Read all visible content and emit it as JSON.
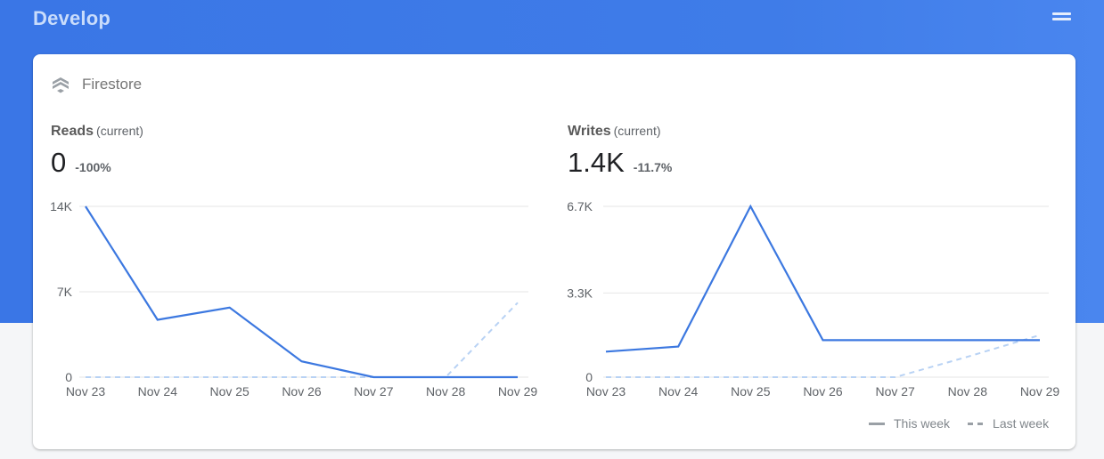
{
  "page": {
    "title": "Develop"
  },
  "card": {
    "title": "Firestore"
  },
  "legend": {
    "this_week": "This week",
    "last_week": "Last week"
  },
  "colors": {
    "this_week": "#3c78e0",
    "last_week": "#b8d2f4",
    "gridline": "#e6e6e6"
  },
  "icons": {
    "menu": "menu-icon",
    "firestore": "firestore-icon"
  },
  "reads": {
    "label": "Reads",
    "label_sub": "(current)",
    "value": "0",
    "delta": "-100%"
  },
  "writes": {
    "label": "Writes",
    "label_sub": "(current)",
    "value": "1.4K",
    "delta": "-11.7%"
  },
  "chart_data": [
    {
      "type": "line",
      "title": "Reads",
      "categories": [
        "Nov 23",
        "Nov 24",
        "Nov 25",
        "Nov 26",
        "Nov 27",
        "Nov 28",
        "Nov 29"
      ],
      "yticks": [
        0,
        7000,
        14000
      ],
      "yticklabels": [
        "0",
        "7K",
        "14K"
      ],
      "ylim": [
        0,
        14000
      ],
      "grid": true,
      "legend_position": "bottom-right",
      "series": [
        {
          "name": "This week",
          "style": "solid",
          "values": [
            14000,
            4700,
            5700,
            1300,
            0,
            0,
            0
          ]
        },
        {
          "name": "Last week",
          "style": "dashed",
          "values": [
            0,
            0,
            0,
            0,
            0,
            0,
            6100
          ]
        }
      ]
    },
    {
      "type": "line",
      "title": "Writes",
      "categories": [
        "Nov 23",
        "Nov 24",
        "Nov 25",
        "Nov 26",
        "Nov 27",
        "Nov 28",
        "Nov 29"
      ],
      "yticks": [
        0,
        3300,
        6700
      ],
      "yticklabels": [
        "0",
        "3.3K",
        "6.7K"
      ],
      "ylim": [
        0,
        6700
      ],
      "grid": true,
      "legend_position": "bottom-right",
      "series": [
        {
          "name": "This week",
          "style": "solid",
          "values": [
            1000,
            1200,
            6700,
            1450,
            1450,
            1450,
            1450
          ]
        },
        {
          "name": "Last week",
          "style": "dashed",
          "values": [
            0,
            0,
            0,
            0,
            0,
            800,
            1650
          ]
        }
      ]
    }
  ]
}
